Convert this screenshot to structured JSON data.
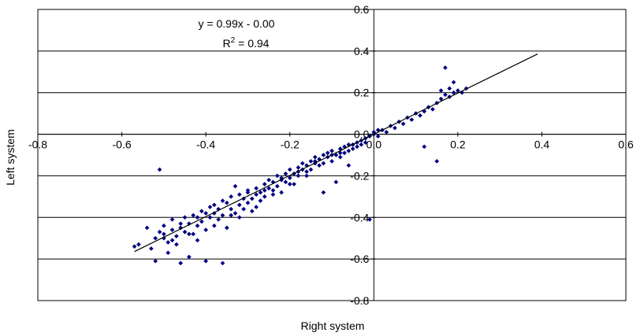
{
  "chart_data": {
    "type": "scatter",
    "title": "",
    "xlabel": "Right system",
    "ylabel": "Left system",
    "xlim": [
      -0.8,
      0.6
    ],
    "ylim": [
      -0.8,
      0.6
    ],
    "x_ticks": [
      "-0.8",
      "-0.6",
      "-0.4",
      "-0.2",
      "0.0",
      "0.2",
      "0.4",
      "0.6"
    ],
    "y_ticks": [
      "0.6",
      "0.4",
      "0.2",
      "0.0",
      "-0.2",
      "-0.4",
      "-0.6",
      "-0.8"
    ],
    "x_tick_values": [
      -0.8,
      -0.6,
      -0.4,
      -0.2,
      0.0,
      0.2,
      0.4,
      0.6
    ],
    "y_tick_values": [
      0.6,
      0.4,
      0.2,
      0.0,
      -0.2,
      -0.4,
      -0.6,
      -0.8
    ],
    "horizontal_gridlines": true,
    "vertical_gridlines": false,
    "legend": "none",
    "marker_color": "#000080",
    "trendline": {
      "equation": "y = 0.99x - 0.00",
      "r_squared_prefix": "R",
      "r_squared_exp": "2",
      "r_squared_suffix": " = 0.94",
      "slope": 0.99,
      "intercept": 0.0,
      "x_range": [
        -0.57,
        0.39
      ],
      "color": "#000000"
    },
    "series": [
      {
        "points": [
          [
            -0.57,
            -0.54
          ],
          [
            -0.56,
            -0.53
          ],
          [
            -0.54,
            -0.45
          ],
          [
            -0.53,
            -0.55
          ],
          [
            -0.52,
            -0.61
          ],
          [
            -0.51,
            -0.17
          ],
          [
            -0.51,
            -0.47
          ],
          [
            -0.5,
            -0.5
          ],
          [
            -0.5,
            -0.44
          ],
          [
            -0.49,
            -0.52
          ],
          [
            -0.49,
            -0.57
          ],
          [
            -0.48,
            -0.46
          ],
          [
            -0.48,
            -0.41
          ],
          [
            -0.47,
            -0.53
          ],
          [
            -0.47,
            -0.49
          ],
          [
            -0.46,
            -0.62
          ],
          [
            -0.46,
            -0.45
          ],
          [
            -0.45,
            -0.4
          ],
          [
            -0.45,
            -0.47
          ],
          [
            -0.44,
            -0.43
          ],
          [
            -0.44,
            -0.59
          ],
          [
            -0.43,
            -0.48
          ],
          [
            -0.43,
            -0.39
          ],
          [
            -0.42,
            -0.44
          ],
          [
            -0.42,
            -0.51
          ],
          [
            -0.41,
            -0.37
          ],
          [
            -0.41,
            -0.42
          ],
          [
            -0.4,
            -0.46
          ],
          [
            -0.4,
            -0.61
          ],
          [
            -0.39,
            -0.4
          ],
          [
            -0.39,
            -0.35
          ],
          [
            -0.38,
            -0.44
          ],
          [
            -0.38,
            -0.38
          ],
          [
            -0.37,
            -0.41
          ],
          [
            -0.37,
            -0.36
          ],
          [
            -0.36,
            -0.62
          ],
          [
            -0.36,
            -0.39
          ],
          [
            -0.35,
            -0.33
          ],
          [
            -0.35,
            -0.45
          ],
          [
            -0.34,
            -0.36
          ],
          [
            -0.34,
            -0.3
          ],
          [
            -0.33,
            -0.38
          ],
          [
            -0.33,
            -0.25
          ],
          [
            -0.32,
            -0.34
          ],
          [
            -0.32,
            -0.4
          ],
          [
            -0.31,
            -0.31
          ],
          [
            -0.31,
            -0.36
          ],
          [
            -0.3,
            -0.33
          ],
          [
            -0.3,
            -0.28
          ],
          [
            -0.29,
            -0.31
          ],
          [
            -0.29,
            -0.37
          ],
          [
            -0.28,
            -0.29
          ],
          [
            -0.28,
            -0.26
          ],
          [
            -0.27,
            -0.32
          ],
          [
            -0.27,
            -0.28
          ],
          [
            -0.26,
            -0.24
          ],
          [
            -0.26,
            -0.3
          ],
          [
            -0.25,
            -0.26
          ],
          [
            -0.25,
            -0.22
          ],
          [
            -0.24,
            -0.27
          ],
          [
            -0.24,
            -0.23
          ],
          [
            -0.23,
            -0.25
          ],
          [
            -0.23,
            -0.2
          ],
          [
            -0.22,
            -0.22
          ],
          [
            -0.22,
            -0.28
          ],
          [
            -0.21,
            -0.19
          ],
          [
            -0.21,
            -0.23
          ],
          [
            -0.2,
            -0.21
          ],
          [
            -0.2,
            -0.17
          ],
          [
            -0.19,
            -0.19
          ],
          [
            -0.19,
            -0.24
          ],
          [
            -0.18,
            -0.16
          ],
          [
            -0.18,
            -0.2
          ],
          [
            -0.17,
            -0.17
          ],
          [
            -0.17,
            -0.14
          ],
          [
            -0.16,
            -0.18
          ],
          [
            -0.16,
            -0.15
          ],
          [
            -0.15,
            -0.13
          ],
          [
            -0.15,
            -0.17
          ],
          [
            -0.14,
            -0.14
          ],
          [
            -0.14,
            -0.11
          ],
          [
            -0.13,
            -0.15
          ],
          [
            -0.13,
            -0.12
          ],
          [
            -0.12,
            -0.1
          ],
          [
            -0.12,
            -0.28
          ],
          [
            -0.11,
            -0.11
          ],
          [
            -0.11,
            -0.09
          ],
          [
            -0.1,
            -0.13
          ],
          [
            -0.1,
            -0.08
          ],
          [
            -0.09,
            -0.1
          ],
          [
            -0.09,
            -0.23
          ],
          [
            -0.08,
            -0.07
          ],
          [
            -0.08,
            -0.11
          ],
          [
            -0.07,
            -0.09
          ],
          [
            -0.07,
            -0.06
          ],
          [
            -0.06,
            -0.08
          ],
          [
            -0.06,
            -0.15
          ],
          [
            -0.05,
            -0.05
          ],
          [
            -0.05,
            -0.07
          ],
          [
            -0.04,
            -0.04
          ],
          [
            -0.04,
            -0.06
          ],
          [
            -0.03,
            -0.03
          ],
          [
            -0.03,
            -0.05
          ],
          [
            -0.02,
            -0.02
          ],
          [
            -0.02,
            -0.04
          ],
          [
            -0.01,
            -0.41
          ],
          [
            -0.01,
            -0.01
          ],
          [
            0.0,
            0.0
          ],
          [
            0.0,
            0.01
          ],
          [
            0.01,
            0.02
          ],
          [
            0.01,
            -0.01
          ],
          [
            0.02,
            0.02
          ],
          [
            0.03,
            0.01
          ],
          [
            0.04,
            0.04
          ],
          [
            0.05,
            0.03
          ],
          [
            0.06,
            0.06
          ],
          [
            0.07,
            0.05
          ],
          [
            0.08,
            0.08
          ],
          [
            0.09,
            0.07
          ],
          [
            0.1,
            0.1
          ],
          [
            0.11,
            0.09
          ],
          [
            0.12,
            0.11
          ],
          [
            0.12,
            -0.06
          ],
          [
            0.13,
            0.13
          ],
          [
            0.14,
            0.12
          ],
          [
            0.15,
            0.15
          ],
          [
            0.15,
            -0.13
          ],
          [
            0.16,
            0.17
          ],
          [
            0.16,
            0.21
          ],
          [
            0.17,
            0.19
          ],
          [
            0.17,
            0.32
          ],
          [
            0.18,
            0.22
          ],
          [
            0.18,
            0.18
          ],
          [
            0.19,
            0.25
          ],
          [
            0.19,
            0.2
          ],
          [
            0.2,
            0.21
          ],
          [
            0.21,
            0.2
          ],
          [
            0.22,
            0.22
          ],
          [
            -0.5,
            -0.48
          ],
          [
            -0.46,
            -0.43
          ],
          [
            -0.4,
            -0.38
          ],
          [
            -0.36,
            -0.32
          ],
          [
            -0.34,
            -0.39
          ],
          [
            -0.3,
            -0.27
          ],
          [
            -0.26,
            -0.27
          ],
          [
            -0.22,
            -0.21
          ],
          [
            -0.18,
            -0.18
          ],
          [
            -0.14,
            -0.13
          ],
          [
            -0.1,
            -0.1
          ],
          [
            -0.06,
            -0.05
          ],
          [
            -0.28,
            -0.35
          ],
          [
            -0.24,
            -0.29
          ],
          [
            -0.2,
            -0.24
          ],
          [
            -0.16,
            -0.2
          ],
          [
            -0.12,
            -0.14
          ],
          [
            -0.08,
            -0.09
          ],
          [
            -0.42,
            -0.4
          ],
          [
            -0.38,
            -0.34
          ],
          [
            -0.32,
            -0.29
          ],
          [
            -0.44,
            -0.48
          ],
          [
            -0.48,
            -0.51
          ],
          [
            -0.52,
            -0.5
          ]
        ]
      }
    ]
  }
}
